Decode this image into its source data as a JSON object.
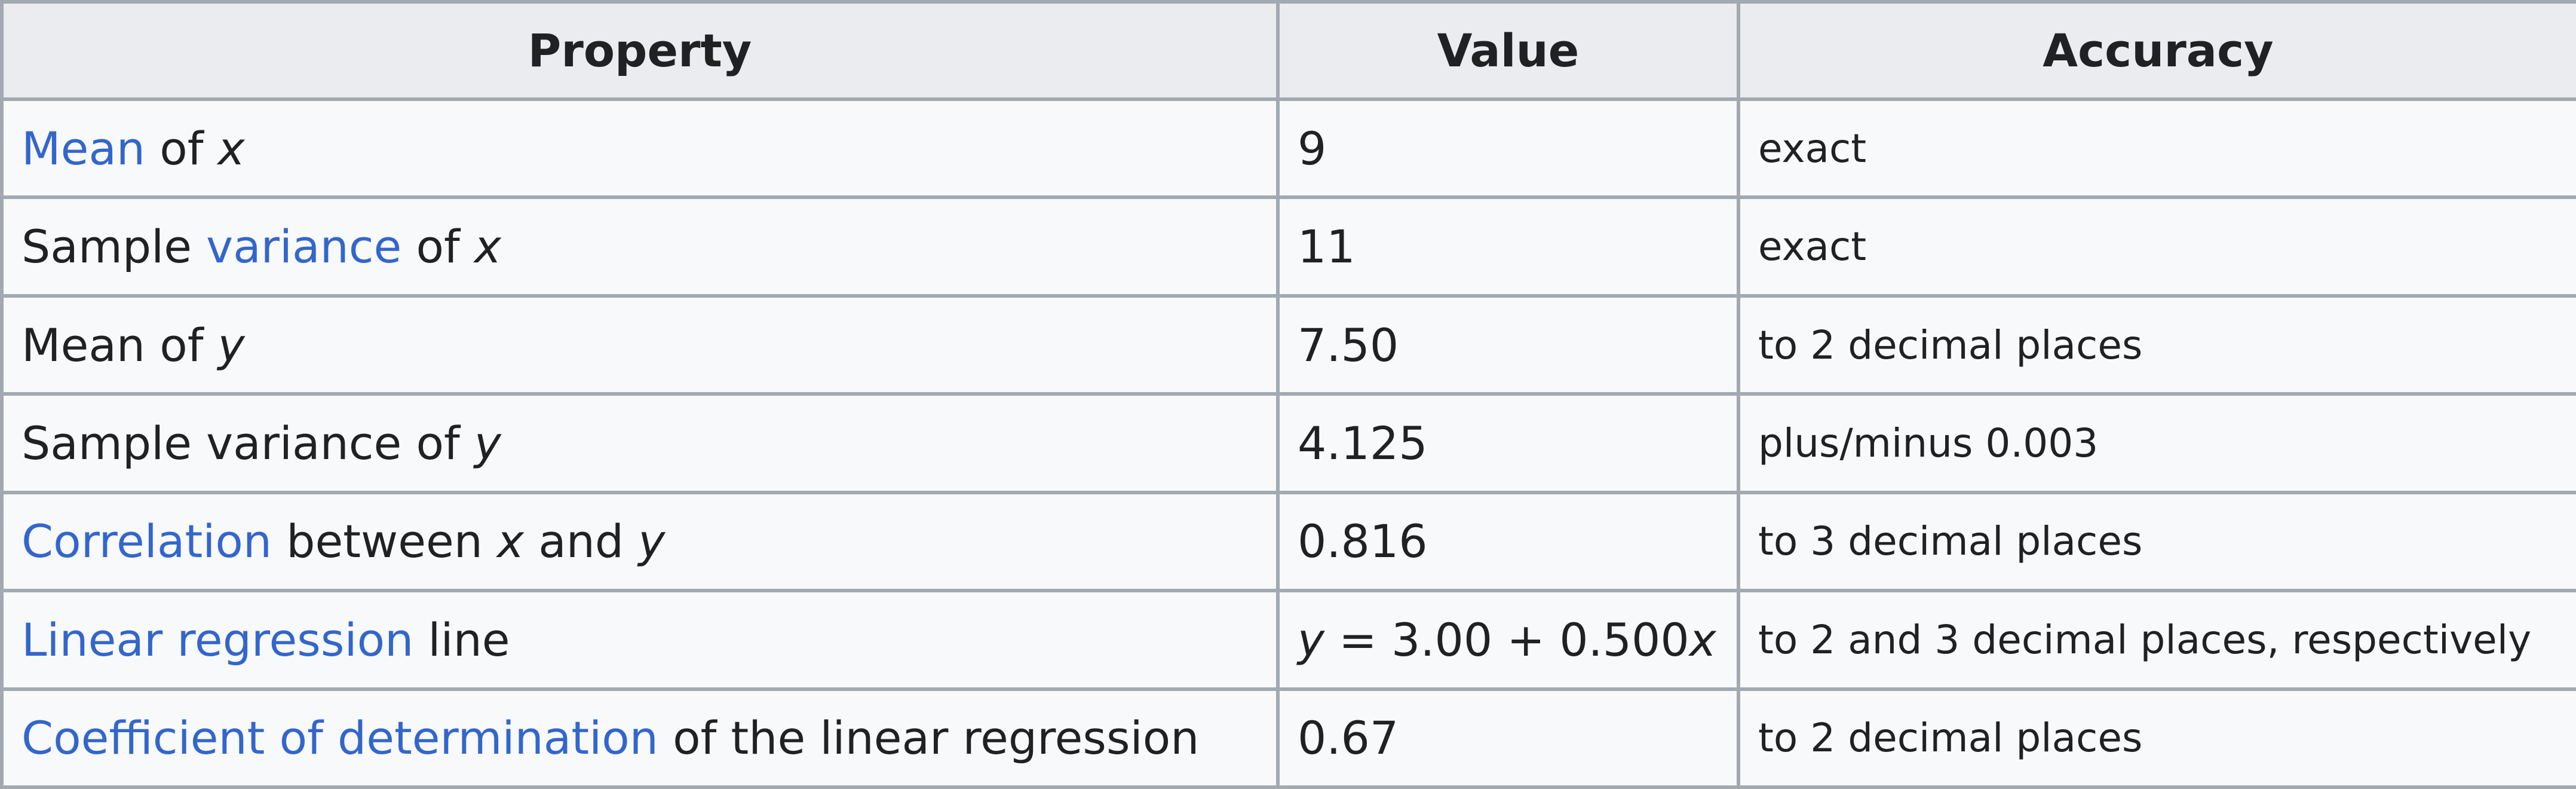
{
  "header": {
    "property": "Property",
    "value": "Value",
    "accuracy": "Accuracy"
  },
  "rows": [
    {
      "property": {
        "link": "Mean",
        "rest": " of ",
        "var": "x"
      },
      "value": "9",
      "accuracy": "exact"
    },
    {
      "property": {
        "pre": "Sample ",
        "link": "variance",
        "rest": " of ",
        "var": "x"
      },
      "value": "11",
      "accuracy": "exact"
    },
    {
      "property": {
        "text": "Mean of ",
        "var": "y"
      },
      "value": "7.50",
      "accuracy": "to 2 decimal places"
    },
    {
      "property": {
        "text": "Sample variance of ",
        "var": "y"
      },
      "value": "4.125",
      "accuracy": "plus/minus 0.003"
    },
    {
      "property": {
        "link": "Correlation",
        "rest": " between ",
        "var1": "x",
        "mid": " and ",
        "var2": "y"
      },
      "value": "0.816",
      "accuracy": "to 3 decimal places"
    },
    {
      "property": {
        "link": "Linear regression",
        "rest": " line"
      },
      "value": {
        "var1": "y",
        "mid": " = 3.00 + 0.500",
        "var2": "x"
      },
      "accuracy": "to 2 and 3 decimal places, respectively"
    },
    {
      "property": {
        "link": "Coefficient of determination",
        "rest": " of the linear regression"
      },
      "value": "0.67",
      "accuracy": "to 2 decimal places"
    }
  ]
}
